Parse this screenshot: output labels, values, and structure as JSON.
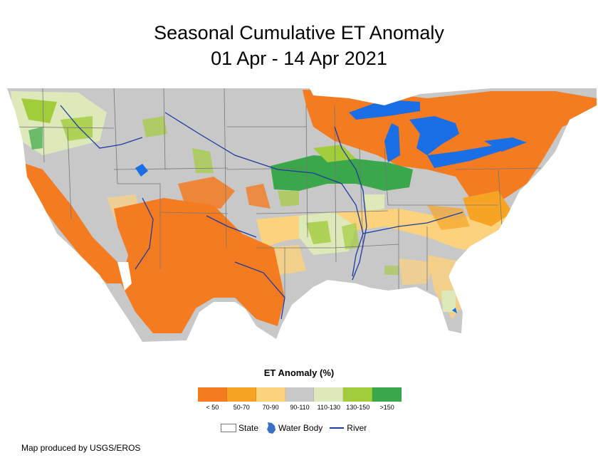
{
  "title_line1": "Seasonal Cumulative ET Anomaly",
  "title_line2": "01 Apr - 14 Apr 2021",
  "legend": {
    "title": "ET Anomaly (%)",
    "classes": [
      {
        "label": "< 50",
        "color": "#f47b20"
      },
      {
        "label": "50-70",
        "color": "#f7a425"
      },
      {
        "label": "70-90",
        "color": "#fcd27c"
      },
      {
        "label": "90-110",
        "color": "#c8c8c8"
      },
      {
        "label": "110-130",
        "color": "#dde9b8"
      },
      {
        "label": "130-150",
        "color": "#a3cc3c"
      },
      {
        "label": ">150",
        "color": "#3aa74a"
      }
    ]
  },
  "keys": {
    "state": "State",
    "water": "Water Body",
    "river": "River"
  },
  "credit": "Map produced by USGS/EROS",
  "colors": {
    "water": "#1a6fe6",
    "river": "#1f3a9e",
    "state_border": "#777777"
  }
}
